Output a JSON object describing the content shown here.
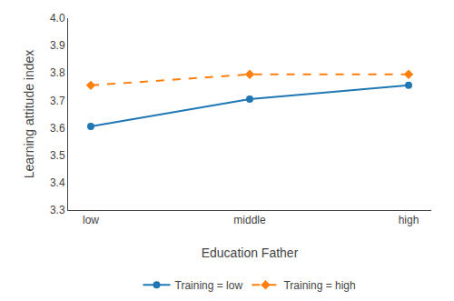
{
  "chart_data": {
    "type": "line",
    "categories": [
      "low",
      "middle",
      "high"
    ],
    "series": [
      {
        "name": "Training = low",
        "values": [
          3.605,
          3.705,
          3.755
        ],
        "marker": "circle",
        "line_style": "solid"
      },
      {
        "name": "Training = high",
        "values": [
          3.755,
          3.795,
          3.795
        ],
        "marker": "diamond",
        "line_style": "dash"
      }
    ],
    "xlabel": "Education Father",
    "ylabel": "Learning attitude index",
    "ylim": [
      3.3,
      4.0
    ],
    "yticks": [
      3.3,
      3.4,
      3.5,
      3.6,
      3.7,
      3.8,
      3.9,
      {
        "value": 4.0,
        "label": "4.0"
      }
    ],
    "grid": false,
    "legend": "bottom"
  }
}
